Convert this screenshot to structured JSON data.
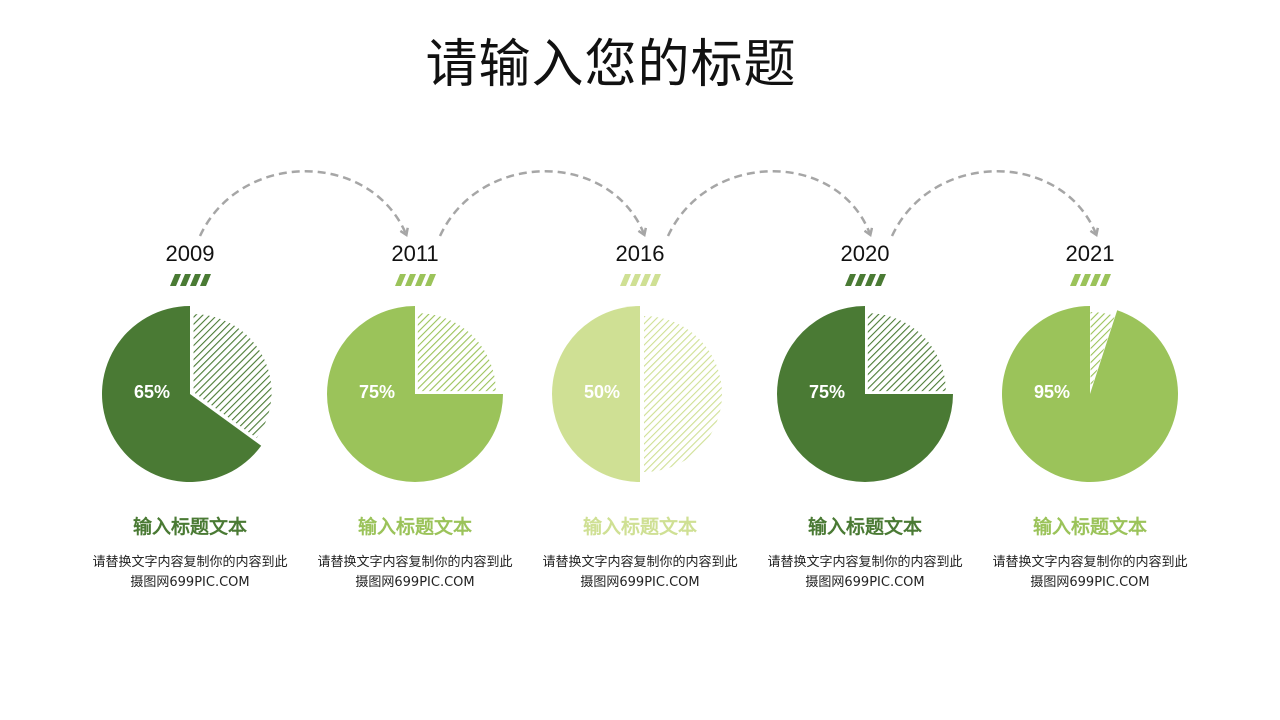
{
  "title": "请输入您的标题",
  "colors": {
    "dark": "#4a7a34",
    "mid": "#9bc35a",
    "light": "#cfe094",
    "arrow": "#a6a6a6"
  },
  "items": [
    {
      "year": "2009",
      "percent_label": "65%",
      "heading": "输入标题文本",
      "desc_line1": "请替换文字内容复制你的内容到此",
      "desc_line2": "摄图网699PIC.COM",
      "tone": "dark"
    },
    {
      "year": "2011",
      "percent_label": "75%",
      "heading": "输入标题文本",
      "desc_line1": "请替换文字内容复制你的内容到此",
      "desc_line2": "摄图网699PIC.COM",
      "tone": "mid"
    },
    {
      "year": "2016",
      "percent_label": "50%",
      "heading": "输入标题文本",
      "desc_line1": "请替换文字内容复制你的内容到此",
      "desc_line2": "摄图网699PIC.COM",
      "tone": "light"
    },
    {
      "year": "2020",
      "percent_label": "75%",
      "heading": "输入标题文本",
      "desc_line1": "请替换文字内容复制你的内容到此",
      "desc_line2": "摄图网699PIC.COM",
      "tone": "dark"
    },
    {
      "year": "2021",
      "percent_label": "95%",
      "heading": "输入标题文本",
      "desc_line1": "请替换文字内容复制你的内容到此",
      "desc_line2": "摄图网699PIC.COM",
      "tone": "mid"
    }
  ],
  "chart_data": {
    "type": "pie",
    "categories": [
      "2009",
      "2011",
      "2016",
      "2020",
      "2021"
    ],
    "values": [
      65,
      75,
      50,
      75,
      95
    ],
    "title": "请输入您的标题",
    "xlabel": "",
    "ylabel": ""
  }
}
